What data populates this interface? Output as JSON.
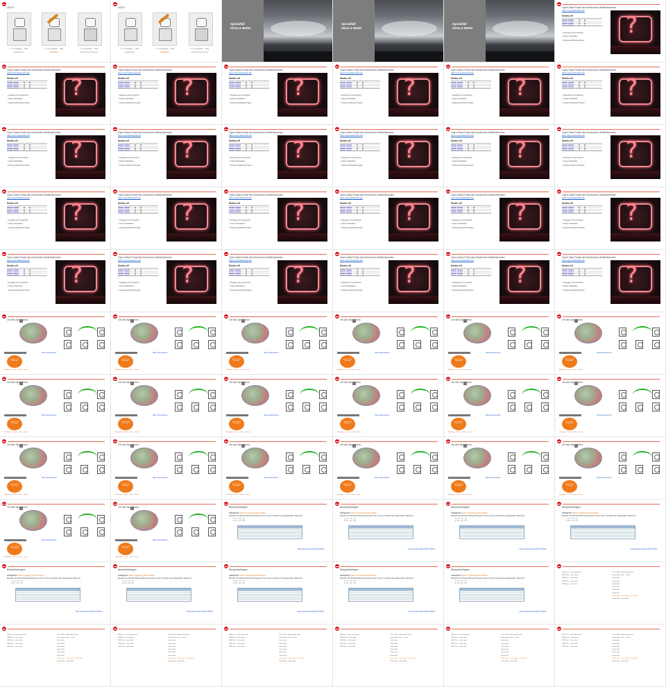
{
  "lego": {
    "title": "LEGO",
    "captions": [
      "1 = Lernzugänge ... Helle",
      "2 = Lernzugänge ... Helle",
      "3 = Lernzugänge ... Helle"
    ],
    "subs": [
      "Quelle/Autor",
      "Einhaltigen",
      "Abweichung Nutzung"
    ]
  },
  "spezial": {
    "line1": "Spezialfall",
    "line2": "Klima & Wetter"
  },
  "quiz": {
    "title": "Open Data Portal des Deutschen Wetterdienstes",
    "link": "https://opendata.dwd.de/",
    "heading": "Seeks of!",
    "items": [
      "Manager-Firmenstandort",
      "Karten-Metadaten",
      "Messpunkt/Station/Projekt"
    ]
  },
  "ort": {
    "title": "Ort des Sprechens",
    "orange_text": "Sender Inhalt Empfänger",
    "link": "https://www.dwd.de/...",
    "note": "Meldungen · Dienste · Kosten · Nutzer"
  },
  "beispiel": {
    "title": "Beispielanfragen",
    "line1_prefix": "Anfrage B1:",
    "line1_link": "Daten Umgebung (siehe Folgen)",
    "line2": "Beispiel: Die Windverhältnisse/Prognose sind in einem Interface des dargestellten Datenorts",
    "line3": "1. 1.2 · 1.3 · 1.4",
    "line4": "2. 2.1 · 2.2 · 2.3",
    "link": "https://wetter.dwd.de/2017/75/23/..."
  },
  "textslide": {
    "col1": [
      "DWDCm · Lorem data ipsum",
      "DWDS mit · Lorem data",
      "DWDClim · Lorem data",
      "DWDClim · Lorem data",
      "DWDCop · Lorem data"
    ],
    "col2": [
      "CO2 / DWD · Anweisung Lorem",
      "Lorem data Lorem · Lorem",
      "Lorem data",
      "Lorem data",
      "Lorem data",
      "Lorem data",
      "Lorem data",
      "Lorem data",
      "Lorem data",
      "Lorem data",
      "Lorem data"
    ],
    "orange_line": "Lorem data · Lorem data · Lorem data",
    "footer": "Lorem data · Lorem data"
  },
  "layout_map": [
    "L",
    "L",
    "S",
    "S",
    "S",
    "Q",
    "Q",
    "Q",
    "Q",
    "Q",
    "Q",
    "Q",
    "Q",
    "Q",
    "Q",
    "Q",
    "Q",
    "Q",
    "Q",
    "Q",
    "Q",
    "Q",
    "Q",
    "Q",
    "Q",
    "Q",
    "Q",
    "Q",
    "Q",
    "Q",
    "O",
    "O",
    "O",
    "O",
    "O",
    "O",
    "O",
    "O",
    "O",
    "O",
    "O",
    "O",
    "O",
    "O",
    "O",
    "O",
    "O",
    "O",
    "O",
    "O",
    "B",
    "B",
    "B",
    "B",
    "B",
    "B",
    "B",
    "B",
    "B",
    "T",
    "T",
    "T",
    "T",
    "T",
    "T",
    "T"
  ]
}
